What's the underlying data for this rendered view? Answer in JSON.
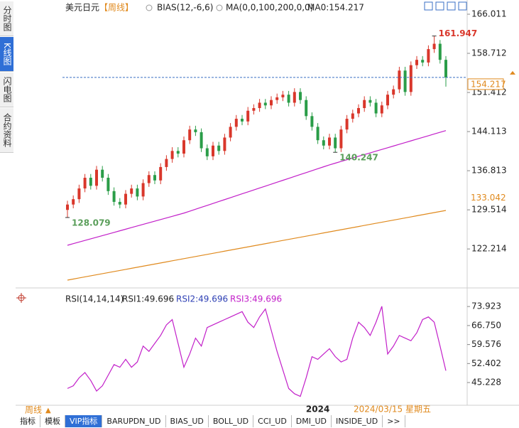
{
  "header": {
    "symbol": "美元日元",
    "period": "【周线】",
    "indicator": "BIAS(12,-6,6)",
    "ma": "MA(0,0,100,200,0,0)",
    "ma0": "MA0:154.217"
  },
  "sidebar": [
    "分时图",
    "K线图",
    "闪电图",
    "合约资料"
  ],
  "chart_data": [
    {
      "type": "candlestick",
      "up_color": "#d9372b",
      "down_color": "#2a9d48",
      "ylim": [
        116,
        168
      ],
      "yticks": [
        166.011,
        158.712,
        151.412,
        144.113,
        136.813,
        129.514,
        122.214
      ],
      "categories": [
        null,
        null,
        null,
        null,
        null,
        null,
        null,
        null,
        null,
        null,
        null,
        null,
        null,
        null,
        null,
        null,
        null,
        null,
        null,
        null,
        null,
        null,
        null,
        null,
        null,
        null,
        null,
        null,
        null,
        null,
        null,
        null,
        null,
        null,
        null,
        null,
        null,
        null,
        null,
        null,
        null,
        null,
        null,
        "2024",
        null,
        null,
        null,
        null,
        null,
        null,
        null,
        null,
        null,
        null,
        null,
        null,
        null,
        null,
        null,
        null,
        null,
        null,
        null,
        null,
        null,
        null
      ],
      "open": [
        129.5,
        130.5,
        131.5,
        133.5,
        135.5,
        134.0,
        137.0,
        135.5,
        133.0,
        131.0,
        130.5,
        132.5,
        133.5,
        132.0,
        134.5,
        136.0,
        135.0,
        137.5,
        139.0,
        140.5,
        140.0,
        142.5,
        144.5,
        144.0,
        141.0,
        139.5,
        141.5,
        140.5,
        143.0,
        145.0,
        146.5,
        146.0,
        148.0,
        148.5,
        149.5,
        149.0,
        150.0,
        150.5,
        151.0,
        149.5,
        151.5,
        150.0,
        147.0,
        145.0,
        142.5,
        141.5,
        143.0,
        141.0,
        144.5,
        146.5,
        147.5,
        148.5,
        150.0,
        149.5,
        147.5,
        149.0,
        151.0,
        152.0,
        155.5,
        151.5,
        156.5,
        157.5,
        157.0,
        159.5,
        160.5,
        157.5
      ],
      "high": [
        131.2,
        132.2,
        134.2,
        136.2,
        136.2,
        137.7,
        137.7,
        136.2,
        133.7,
        131.7,
        133.2,
        134.2,
        134.2,
        135.2,
        136.7,
        136.7,
        138.2,
        139.7,
        141.2,
        141.2,
        143.2,
        145.2,
        145.2,
        144.7,
        141.7,
        142.2,
        142.2,
        143.7,
        145.7,
        147.2,
        147.2,
        148.7,
        149.2,
        150.2,
        150.2,
        150.7,
        151.2,
        151.7,
        151.7,
        152.2,
        152.2,
        150.7,
        147.7,
        145.7,
        143.2,
        143.7,
        143.7,
        145.2,
        147.2,
        148.2,
        149.2,
        150.7,
        150.7,
        150.2,
        149.7,
        151.7,
        152.7,
        156.2,
        156.2,
        157.2,
        158.2,
        158.2,
        160.2,
        161.947,
        161.2,
        158.2
      ],
      "low": [
        128.079,
        129.8,
        130.8,
        132.8,
        133.3,
        133.3,
        134.8,
        132.3,
        130.3,
        129.8,
        129.8,
        131.8,
        131.3,
        131.3,
        133.8,
        134.3,
        134.3,
        136.8,
        138.3,
        139.3,
        139.3,
        141.8,
        143.3,
        140.3,
        138.8,
        138.8,
        139.8,
        139.8,
        142.3,
        144.3,
        145.3,
        145.3,
        147.3,
        147.8,
        148.3,
        148.3,
        149.3,
        149.8,
        148.8,
        148.8,
        149.3,
        146.3,
        144.3,
        141.8,
        140.8,
        140.8,
        140.247,
        140.3,
        143.8,
        145.8,
        146.8,
        147.8,
        148.8,
        146.8,
        146.8,
        148.3,
        150.3,
        151.3,
        150.8,
        150.8,
        155.8,
        156.3,
        156.3,
        158.8,
        156.8,
        152.5
      ],
      "close": [
        130.5,
        131.5,
        133.5,
        135.5,
        134.0,
        137.0,
        135.5,
        133.0,
        131.0,
        130.5,
        132.5,
        133.5,
        132.0,
        134.5,
        136.0,
        135.0,
        137.5,
        139.0,
        140.5,
        140.0,
        142.5,
        144.5,
        144.0,
        141.0,
        139.5,
        141.5,
        140.5,
        143.0,
        145.0,
        146.5,
        146.0,
        148.0,
        148.5,
        149.5,
        149.0,
        150.0,
        150.5,
        151.0,
        149.5,
        151.5,
        150.0,
        147.0,
        145.0,
        142.5,
        141.5,
        143.0,
        141.0,
        144.5,
        146.5,
        147.5,
        148.5,
        150.0,
        149.5,
        147.5,
        149.0,
        151.0,
        152.0,
        155.5,
        151.5,
        156.5,
        157.5,
        157.0,
        159.5,
        160.5,
        157.5,
        154.217
      ],
      "lines": [
        {
          "color": "#c21fc9",
          "values": [
            122.9,
            123.2,
            123.5,
            123.8,
            124.1,
            124.4,
            124.7,
            125.0,
            125.3,
            125.6,
            125.9,
            126.2,
            126.5,
            126.8,
            127.1,
            127.4,
            127.7,
            128.0,
            128.3,
            128.6,
            128.9,
            129.26,
            129.62,
            129.98,
            130.34,
            130.7,
            131.06,
            131.42,
            131.78,
            132.14,
            132.5,
            132.86,
            133.22,
            133.58,
            133.94,
            134.3,
            134.66,
            135.02,
            135.38,
            135.74,
            136.1,
            136.46,
            136.82,
            137.18,
            137.54,
            137.9,
            138.22,
            138.54,
            138.86,
            139.18,
            139.5,
            139.82,
            140.14,
            140.46,
            140.78,
            141.1,
            141.42,
            141.74,
            142.06,
            142.38,
            142.7,
            143.02,
            143.34,
            143.66,
            143.98,
            144.3
          ]
        },
        {
          "color": "#e08a1e",
          "values": [
            116.4,
            116.6,
            116.8,
            117.0,
            117.2,
            117.4,
            117.6,
            117.8,
            118.0,
            118.2,
            118.4,
            118.6,
            118.8,
            119.0,
            119.2,
            119.4,
            119.6,
            119.8,
            120.0,
            120.2,
            120.4,
            120.6,
            120.8,
            121.0,
            121.2,
            121.4,
            121.6,
            121.8,
            122.0,
            122.2,
            122.4,
            122.6,
            122.8,
            123.0,
            123.2,
            123.4,
            123.6,
            123.8,
            124.0,
            124.2,
            124.4,
            124.6,
            124.8,
            125.0,
            125.2,
            125.4,
            125.6,
            125.8,
            126.0,
            126.2,
            126.4,
            126.6,
            126.8,
            127.0,
            127.2,
            127.4,
            127.6,
            127.8,
            128.0,
            128.2,
            128.4,
            128.6,
            128.8,
            129.0,
            129.2,
            129.4
          ]
        }
      ],
      "annotations": [
        {
          "label": "161.947",
          "value": 161.947,
          "color": "#d9372b"
        },
        {
          "label": "128.079",
          "value": 128.079,
          "color": "#5a9e5a"
        },
        {
          "label": "140.247",
          "value": 140.247,
          "color": "#5a9e5a"
        }
      ],
      "price_line": {
        "value": 154.217,
        "label": "154.217"
      },
      "ma_label": {
        "value": 133.042,
        "label": "133.042"
      },
      "cursor_label": "2024/03/15 星期五"
    },
    {
      "type": "line",
      "title": "RSI(14,14,14)",
      "readouts": [
        {
          "label": "RSI1:49.696",
          "color": "#222222"
        },
        {
          "label": "RSI2:49.696",
          "color": "#2d3fb4"
        },
        {
          "label": "RSI3:49.696",
          "color": "#c21fc9"
        }
      ],
      "ylim": [
        38,
        79.6
      ],
      "yticks": [
        73.923,
        {
          "value": 66.75,
          "label": "66.750"
        },
        59.576,
        52.402,
        45.228
      ],
      "series": [
        {
          "color": "#c21fc9",
          "values": [
            43,
            44,
            47,
            49,
            46,
            42,
            44,
            48,
            52,
            51,
            54,
            51,
            53,
            59,
            57,
            60,
            63,
            67,
            69,
            60,
            51,
            56,
            62,
            59,
            66,
            67,
            68,
            69,
            70,
            71,
            72,
            68,
            66,
            70,
            73,
            65,
            57,
            50,
            43,
            41,
            40,
            47,
            55,
            54,
            56,
            58,
            55,
            53,
            54,
            62,
            68,
            66,
            63,
            68,
            74,
            56,
            59,
            63,
            62,
            61,
            64,
            69,
            70,
            68,
            59,
            49.696
          ]
        }
      ]
    }
  ],
  "footer": {
    "period_tag": "周线",
    "tabs": [
      "指标",
      "模板",
      "VIP指标",
      "BARUPDN_UD",
      "BIAS_UD",
      "BOLL_UD",
      "CCI_UD",
      "DMI_UD",
      "INSIDE_UD",
      ">>"
    ]
  }
}
